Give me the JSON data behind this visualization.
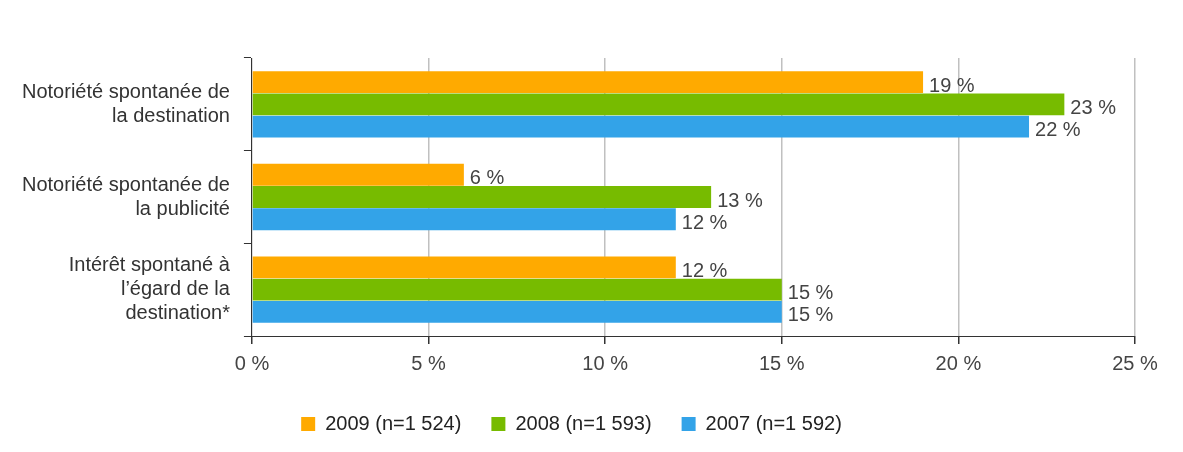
{
  "chart_data": {
    "type": "bar",
    "orientation": "horizontal",
    "categories": [
      "Notoriété spontanée de la destination",
      "Notoriété spontanée de la publicité",
      "Intérêt spontané à l’égard de la destination*"
    ],
    "series": [
      {
        "name": "2009 (n=1 524)",
        "color": "#ffaa00",
        "values": [
          19,
          6,
          12
        ],
        "value_labels": [
          "19 %",
          "6 %",
          "12 %"
        ]
      },
      {
        "name": "2008 (n=1 593)",
        "color": "#77bb00",
        "values": [
          23,
          13,
          15
        ],
        "value_labels": [
          "23 %",
          "13 %",
          "15 %"
        ]
      },
      {
        "name": "2007 (n=1 592)",
        "color": "#33a3e8",
        "values": [
          22,
          12,
          15
        ],
        "value_labels": [
          "22 %",
          "12 %",
          "15 %"
        ]
      }
    ],
    "xlim": [
      0,
      25
    ],
    "xticks": [
      {
        "value": 0,
        "label": "0 %"
      },
      {
        "value": 5,
        "label": "5 %"
      },
      {
        "value": 10,
        "label": "10 %"
      },
      {
        "value": 15,
        "label": "15 %"
      },
      {
        "value": 20,
        "label": "20 %"
      },
      {
        "value": 25,
        "label": "25 %"
      }
    ],
    "grid": "x",
    "legend": "bottom"
  }
}
